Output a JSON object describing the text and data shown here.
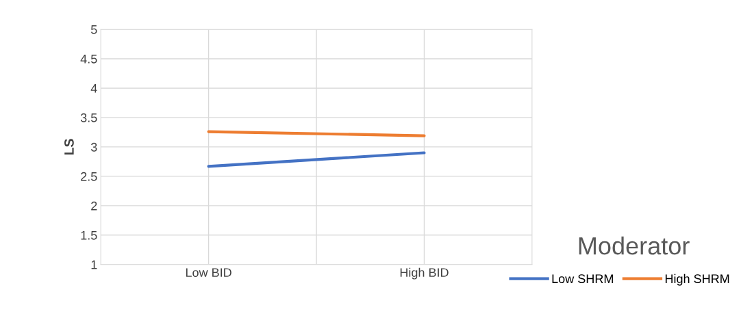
{
  "chart_data": {
    "type": "line",
    "ylabel": "LS",
    "legend_title": "Moderator",
    "categories": [
      "Low BID",
      "High BID"
    ],
    "series": [
      {
        "name": "Low SHRM",
        "color": "#4472c4",
        "values": [
          2.67,
          2.9
        ]
      },
      {
        "name": "High SHRM",
        "color": "#ed7d31",
        "values": [
          3.26,
          3.19
        ]
      }
    ],
    "ylim": [
      1,
      5
    ],
    "yticks": [
      1,
      1.5,
      2,
      2.5,
      3,
      3.5,
      4,
      4.5,
      5
    ],
    "grid": true,
    "legend": "bottom right",
    "marker": "none",
    "line_style": "solid"
  }
}
